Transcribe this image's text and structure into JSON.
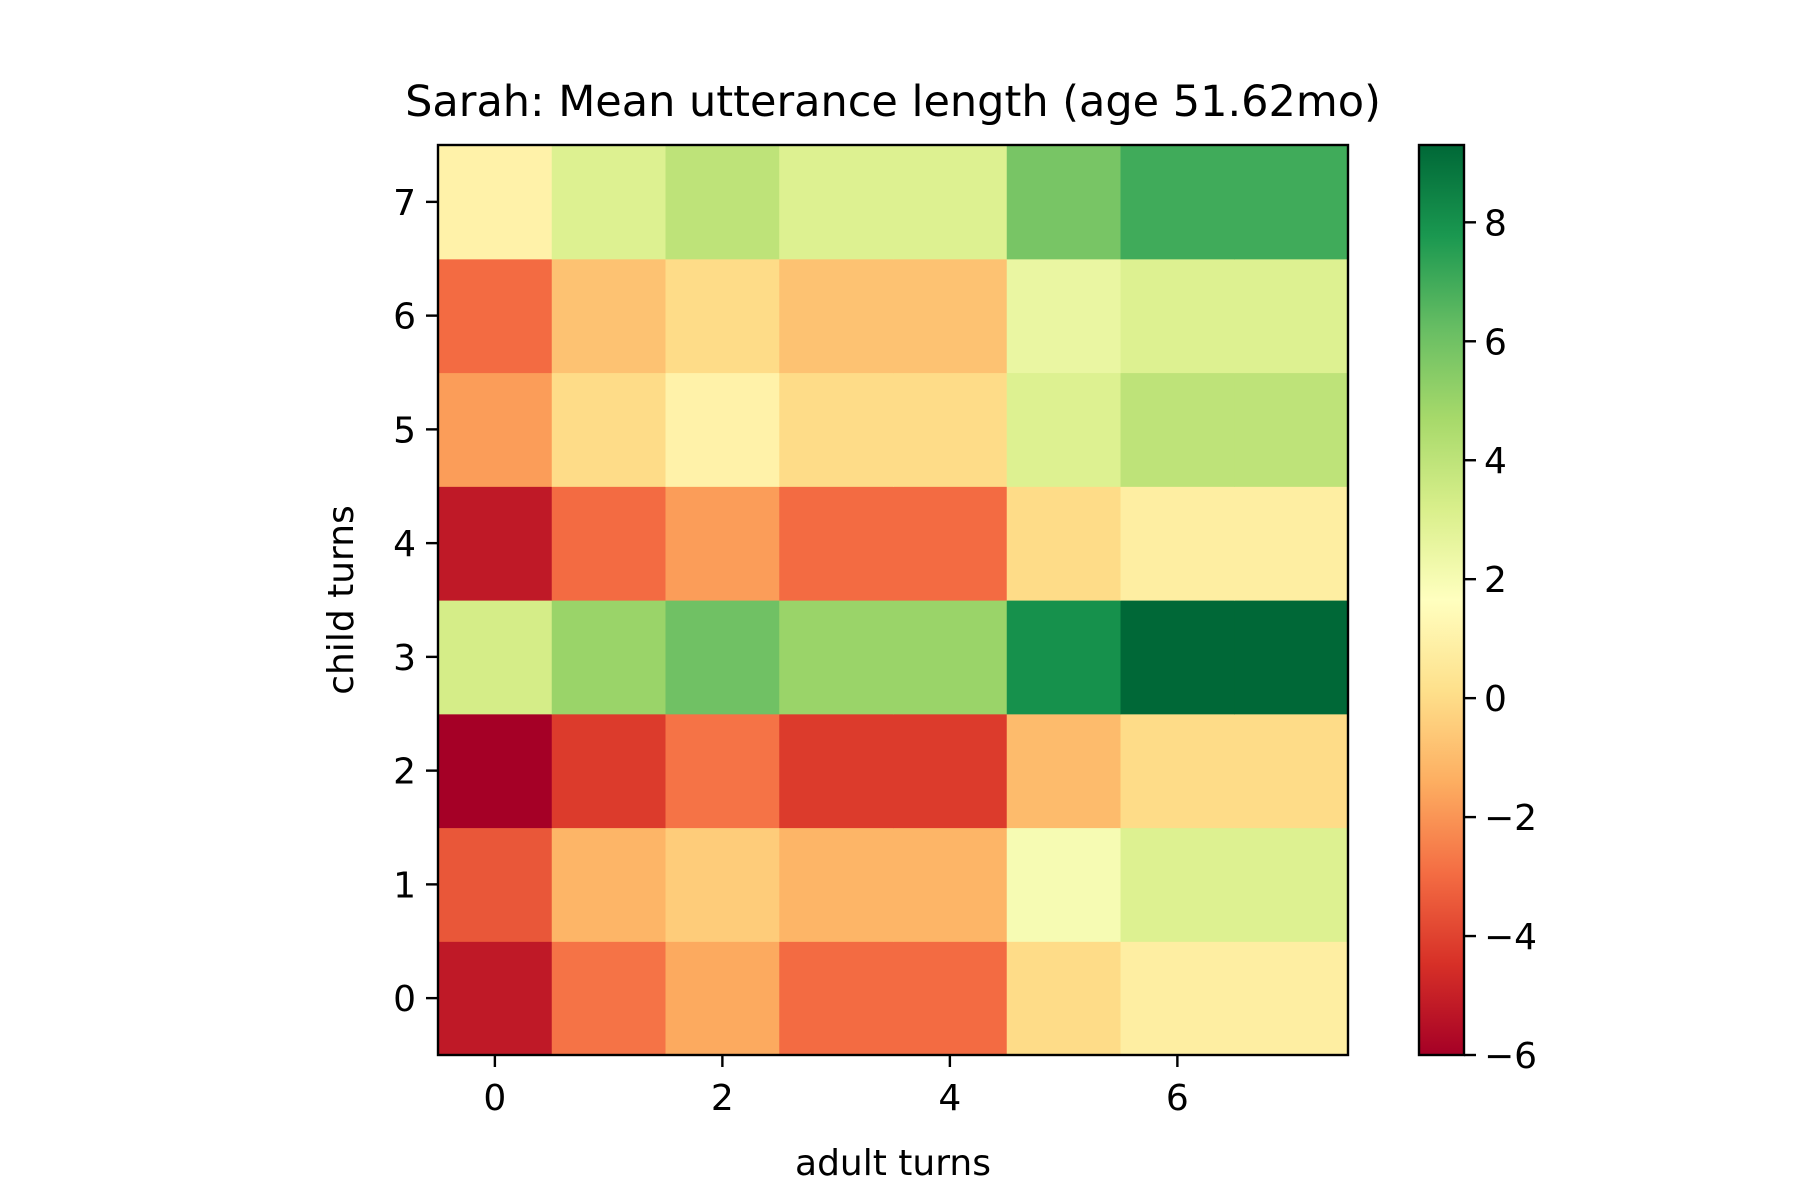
{
  "chart_data": {
    "type": "heatmap",
    "title": "Sarah: Mean utterance length (age 51.62mo)",
    "xlabel": "adult turns",
    "ylabel": "child turns",
    "x": [
      0,
      1,
      2,
      3,
      4,
      5,
      6,
      7
    ],
    "y": [
      0,
      1,
      2,
      3,
      4,
      5,
      6,
      7
    ],
    "x_ticks": [
      "0",
      "2",
      "4",
      "6"
    ],
    "y_ticks": [
      "0",
      "1",
      "2",
      "3",
      "4",
      "5",
      "6",
      "7"
    ],
    "xlim": [
      -0.5,
      7.5
    ],
    "ylim": [
      -0.5,
      7.5
    ],
    "values": [
      [
        -5.2,
        -2.8,
        -1.5,
        -3.0,
        -3.0,
        0.0,
        0.8,
        0.8
      ],
      [
        -3.5,
        -1.2,
        -0.5,
        -1.2,
        -1.2,
        2.0,
        3.0,
        3.0
      ],
      [
        -6.0,
        -4.2,
        -2.8,
        -4.2,
        -4.2,
        -1.0,
        0.0,
        0.0
      ],
      [
        3.3,
        5.0,
        6.0,
        5.0,
        5.0,
        8.0,
        9.3,
        9.3
      ],
      [
        -5.2,
        -3.0,
        -1.8,
        -3.0,
        -3.0,
        0.0,
        0.8,
        0.8
      ],
      [
        -1.8,
        0.0,
        1.0,
        0.0,
        0.0,
        3.0,
        4.0,
        4.0
      ],
      [
        -3.0,
        -0.8,
        0.0,
        -0.8,
        -0.8,
        2.5,
        3.0,
        3.0
      ],
      [
        1.0,
        3.0,
        4.0,
        3.0,
        3.0,
        5.8,
        7.0,
        7.0
      ]
    ],
    "colormap": "RdYlGn",
    "color_range": [
      -6,
      9.3
    ],
    "colorbar_ticks": [
      "−6",
      "−4",
      "−2",
      "0",
      "2",
      "4",
      "6",
      "8"
    ],
    "colorbar_tick_values": [
      -6,
      -4,
      -2,
      0,
      2,
      4,
      6,
      8
    ],
    "grid": false,
    "legend": "none"
  }
}
